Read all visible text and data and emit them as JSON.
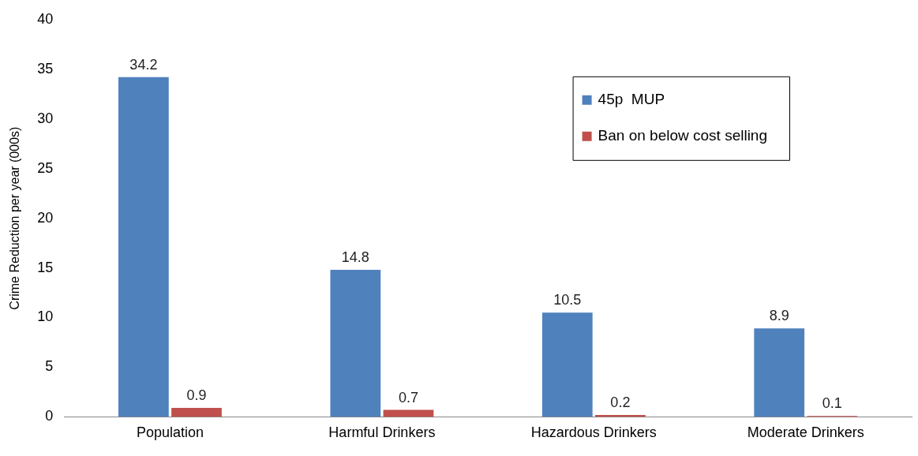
{
  "chart_data": {
    "type": "bar",
    "ylabel": "Crime Reduction per year (000s)",
    "categories": [
      "Population",
      "Harmful Drinkers",
      "Hazardous Drinkers",
      "Moderate Drinkers"
    ],
    "series": [
      {
        "name": "45p  MUP",
        "color": "#4f81bd",
        "values": [
          34.2,
          14.8,
          10.5,
          8.9
        ]
      },
      {
        "name": "Ban on below cost selling",
        "color": "#c0504d",
        "values": [
          0.9,
          0.7,
          0.2,
          0.1
        ]
      }
    ],
    "ylim": [
      0,
      40
    ],
    "yticks": [
      0,
      5,
      10,
      15,
      20,
      25,
      30,
      35,
      40
    ],
    "grid": false,
    "legend": "top right",
    "data_labels": true
  }
}
